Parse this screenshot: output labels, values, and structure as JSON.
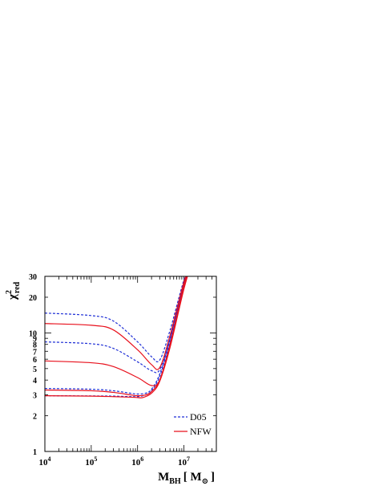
{
  "chart_data": {
    "type": "line",
    "title": "",
    "xlabel": {
      "main": "M",
      "sub": "BH",
      "bracket_open": "[ M",
      "sun_sub": "⊙",
      "bracket_close": "]"
    },
    "ylabel": {
      "main": "χ",
      "sup": "2",
      "sub": "red"
    },
    "x_scale": "log",
    "y_scale": "log",
    "xlim": [
      10000,
      50000000
    ],
    "ylim": [
      1,
      30
    ],
    "x_ticks": [
      {
        "value": 10000,
        "base": "10",
        "exp": "4"
      },
      {
        "value": 100000,
        "base": "10",
        "exp": "5"
      },
      {
        "value": 1000000,
        "base": "10",
        "exp": "6"
      },
      {
        "value": 10000000,
        "base": "10",
        "exp": "7"
      }
    ],
    "y_ticks": [
      {
        "value": 1,
        "label": "1"
      },
      {
        "value": 2,
        "label": "2"
      },
      {
        "value": 3,
        "label": "3"
      },
      {
        "value": 4,
        "label": "4"
      },
      {
        "value": 5,
        "label": "5"
      },
      {
        "value": 6,
        "label": "6"
      },
      {
        "value": 7,
        "label": "7"
      },
      {
        "value": 8,
        "label": "8"
      },
      {
        "value": 9,
        "label": "9"
      },
      {
        "value": 10,
        "label": "10"
      },
      {
        "value": 20,
        "label": "20"
      },
      {
        "value": 30,
        "label": "30"
      }
    ],
    "legend": {
      "position": "bottom-right",
      "entries": [
        {
          "label": "D05",
          "color": "#1f2fd6",
          "dash": "dashed"
        },
        {
          "label": "NFW",
          "color": "#e8101c",
          "dash": "solid"
        }
      ]
    },
    "series": [
      {
        "group": "D05",
        "color": "#1f2fd6",
        "dash": "dashed",
        "x": [
          10000,
          100000,
          300000,
          1000000,
          2000000,
          3000000,
          5000000,
          10000000,
          15000000
        ],
        "y": [
          14.7,
          14.0,
          12.6,
          8.4,
          6.3,
          5.9,
          10.5,
          28,
          40
        ]
      },
      {
        "group": "D05",
        "color": "#1f2fd6",
        "dash": "dashed",
        "x": [
          10000,
          100000,
          300000,
          1000000,
          2000000,
          3000000,
          5000000,
          10000000,
          15000000
        ],
        "y": [
          8.4,
          8.1,
          7.4,
          5.7,
          4.8,
          4.9,
          9.0,
          26,
          40
        ]
      },
      {
        "group": "D05",
        "color": "#1f2fd6",
        "dash": "dashed",
        "x": [
          10000,
          100000,
          300000,
          700000,
          1000000,
          1500000,
          2000000,
          3000000,
          5000000,
          10000000,
          15000000
        ],
        "y": [
          3.4,
          3.35,
          3.25,
          3.1,
          3.05,
          3.1,
          3.35,
          4.5,
          8.8,
          26,
          40
        ]
      },
      {
        "group": "D05",
        "color": "#1f2fd6",
        "dash": "dashed",
        "x": [
          10000,
          100000,
          300000,
          700000,
          1000000,
          1500000,
          2000000,
          3000000,
          5000000,
          10000000,
          15000000
        ],
        "y": [
          2.95,
          2.94,
          2.93,
          2.9,
          2.9,
          3.0,
          3.25,
          4.3,
          8.4,
          25,
          40
        ]
      },
      {
        "group": "NFW",
        "color": "#e8101c",
        "dash": "solid",
        "x": [
          10000,
          100000,
          300000,
          1000000,
          2000000,
          3000000,
          5000000,
          10000000,
          15000000
        ],
        "y": [
          12.0,
          11.6,
          10.6,
          7.2,
          5.4,
          5.1,
          9.5,
          27,
          40
        ]
      },
      {
        "group": "NFW",
        "color": "#e8101c",
        "dash": "solid",
        "x": [
          10000,
          100000,
          300000,
          1000000,
          2000000,
          3000000,
          5000000,
          10000000,
          15000000
        ],
        "y": [
          5.8,
          5.6,
          5.2,
          4.2,
          3.6,
          4.0,
          8.0,
          25,
          40
        ]
      },
      {
        "group": "NFW",
        "color": "#e8101c",
        "dash": "solid",
        "x": [
          10000,
          100000,
          300000,
          700000,
          1000000,
          1500000,
          2000000,
          3000000,
          5000000,
          10000000,
          15000000
        ],
        "y": [
          3.3,
          3.25,
          3.15,
          3.0,
          2.95,
          3.0,
          3.2,
          4.0,
          7.8,
          24,
          40
        ]
      },
      {
        "group": "NFW",
        "color": "#e8101c",
        "dash": "solid",
        "x": [
          10000,
          100000,
          300000,
          700000,
          1000000,
          1300000,
          2000000,
          3000000,
          5000000,
          10000000,
          15000000
        ],
        "y": [
          2.95,
          2.93,
          2.9,
          2.87,
          2.85,
          2.85,
          3.1,
          3.9,
          7.5,
          23.5,
          40
        ]
      }
    ]
  }
}
